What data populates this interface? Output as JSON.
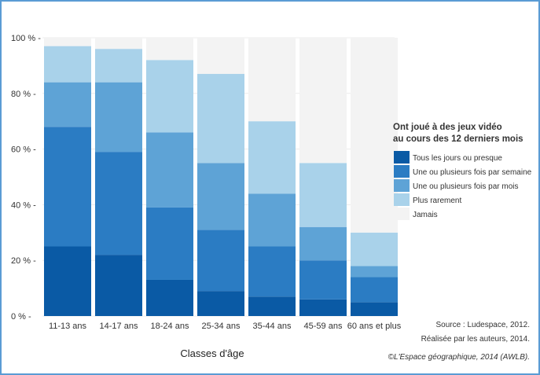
{
  "chart_data": {
    "type": "bar",
    "stacked": true,
    "categories": [
      "11-13 ans",
      "14-17 ans",
      "18-24 ans",
      "25-34 ans",
      "35-44 ans",
      "45-59 ans",
      "60 ans et plus"
    ],
    "series": [
      {
        "name": "Tous les jours ou presque",
        "color": "#0a5aa5",
        "values": [
          25,
          22,
          13,
          9,
          7,
          6,
          5
        ]
      },
      {
        "name": "Une ou plusieurs fois par semaine",
        "color": "#2b7cc3",
        "values": [
          43,
          37,
          26,
          22,
          18,
          14,
          9
        ]
      },
      {
        "name": "Une ou plusieurs fois par mois",
        "color": "#5ea3d6",
        "values": [
          16,
          25,
          27,
          24,
          19,
          12,
          4
        ]
      },
      {
        "name": "Plus rarement",
        "color": "#a9d2ea",
        "values": [
          13,
          12,
          26,
          32,
          26,
          23,
          12
        ]
      },
      {
        "name": "Jamais",
        "color": "#f3f3f3",
        "values": [
          3,
          4,
          8,
          13,
          30,
          45,
          70
        ]
      }
    ],
    "yticks": [
      "0 %",
      "20 %",
      "40 %",
      "60 %",
      "80 %",
      "100 %"
    ],
    "ylim": [
      0,
      100
    ],
    "xlabel": "Classes d'âge",
    "ylabel": "",
    "legend": {
      "title_lines": [
        "Ont joué à des jeux vidéo",
        "au cours des 12 derniers mois"
      ],
      "position": "right"
    },
    "grid": true
  },
  "source": {
    "lines": [
      "Source : Ludespace, 2012.",
      "Réalisée par les auteurs, 2014.",
      "©L'Espace géographique, 2014 (AWLB)."
    ]
  }
}
